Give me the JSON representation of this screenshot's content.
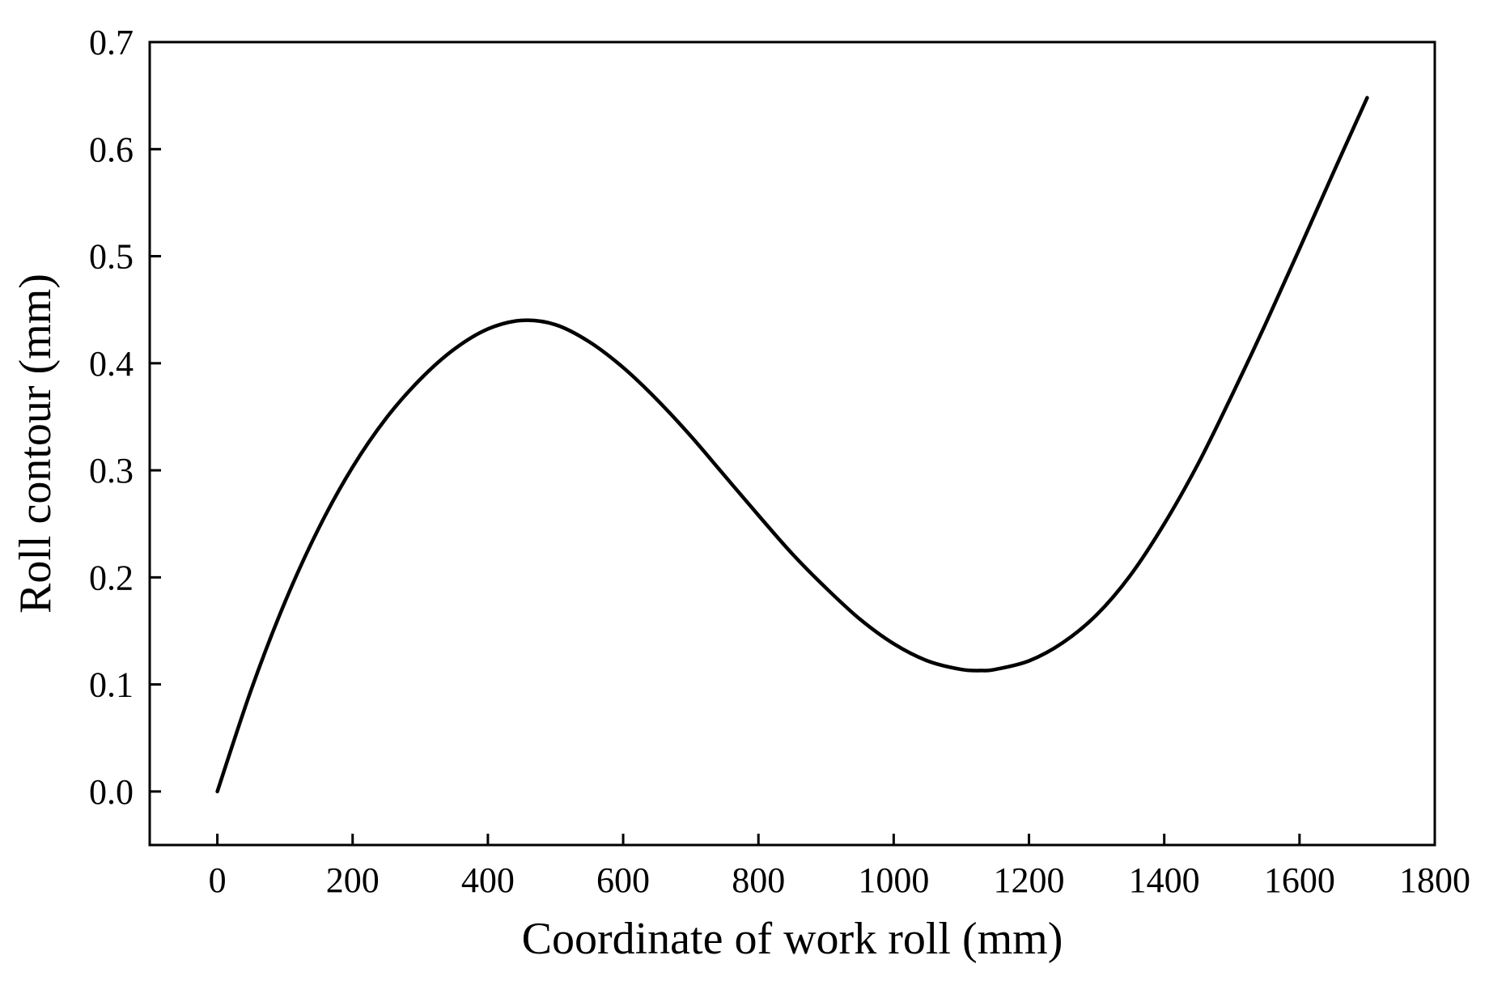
{
  "chart_data": {
    "type": "line",
    "title": "",
    "xlabel": "Coordinate of work roll (mm)",
    "ylabel": "Roll contour (mm)",
    "xlim": [
      -100,
      1800
    ],
    "ylim": [
      -0.05,
      0.7
    ],
    "xticks": [
      0,
      200,
      400,
      600,
      800,
      1000,
      1200,
      1400,
      1600,
      1800
    ],
    "xtick_labels": [
      "0",
      "200",
      "400",
      "600",
      "800",
      "1000",
      "1200",
      "1400",
      "1600",
      "1800"
    ],
    "yticks": [
      0.0,
      0.1,
      0.2,
      0.3,
      0.4,
      0.5,
      0.6,
      0.7
    ],
    "ytick_labels": [
      "0.0",
      "0.1",
      "0.2",
      "0.3",
      "0.4",
      "0.5",
      "0.6",
      "0.7"
    ],
    "grid": false,
    "legend": "none",
    "series": [
      {
        "name": "Roll contour",
        "color": "#000000",
        "x": [
          0,
          50,
          100,
          150,
          200,
          250,
          300,
          350,
          400,
          450,
          500,
          550,
          600,
          650,
          700,
          750,
          800,
          850,
          900,
          950,
          1000,
          1050,
          1100,
          1130,
          1150,
          1200,
          1250,
          1300,
          1350,
          1400,
          1450,
          1500,
          1550,
          1600,
          1650,
          1700
        ],
        "y": [
          0.0,
          0.095,
          0.177,
          0.246,
          0.303,
          0.349,
          0.385,
          0.413,
          0.432,
          0.44,
          0.436,
          0.42,
          0.396,
          0.366,
          0.332,
          0.295,
          0.258,
          0.222,
          0.19,
          0.161,
          0.138,
          0.122,
          0.114,
          0.113,
          0.114,
          0.122,
          0.139,
          0.165,
          0.202,
          0.25,
          0.306,
          0.37,
          0.437,
          0.507,
          0.578,
          0.648
        ]
      }
    ]
  }
}
